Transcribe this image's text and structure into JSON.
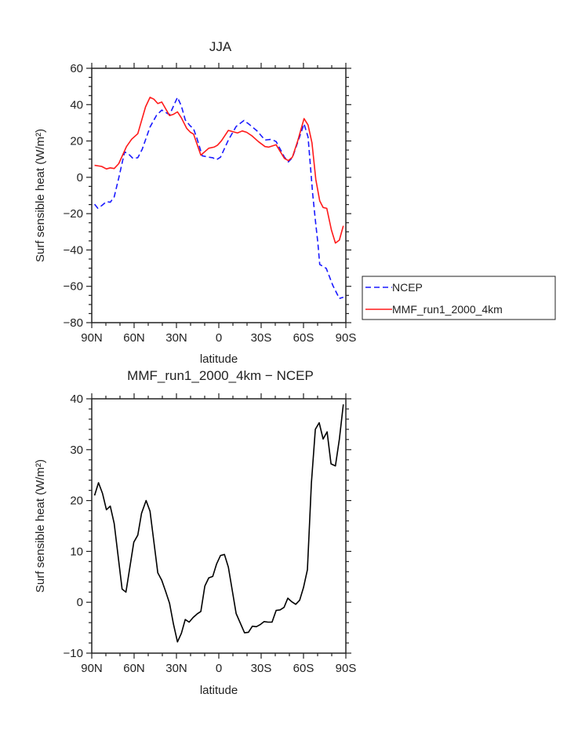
{
  "chart_data": [
    {
      "type": "line",
      "title": "JJA",
      "xlabel": "latitude",
      "ylabel": "Surf sensible heat (W/m²)",
      "xlim": [
        90,
        -90
      ],
      "ylim": [
        -80,
        60
      ],
      "x_ticks": [
        90,
        60,
        30,
        0,
        -30,
        -60,
        -90
      ],
      "x_tick_labels": [
        "90N",
        "60N",
        "30N",
        "0",
        "30S",
        "60S",
        "90S"
      ],
      "y_ticks": [
        60,
        40,
        20,
        0,
        -20,
        -40,
        -60,
        -80
      ],
      "y_tick_labels": [
        "60",
        "40",
        "20",
        "0",
        "−20",
        "−40",
        "−60",
        "−80"
      ],
      "x_minor_step": 10,
      "y_minor_step": 5,
      "legend": {
        "placement": "right",
        "entries": [
          "NCEP",
          "MMF_run1_2000_4km"
        ]
      },
      "series": [
        {
          "name": "NCEP",
          "color": "#1a1aff",
          "dash": "dashed",
          "x": [
            88,
            85.7,
            83,
            79.6,
            76.9,
            74.1,
            70.9,
            66.7,
            63.5,
            60.8,
            57.4,
            54.3,
            48.7,
            44.1,
            40.4,
            34.9,
            29.3,
            26.5,
            23.8,
            20.4,
            17.9,
            15.4,
            11.7,
            7.1,
            4.3,
            1.6,
            -1.2,
            -6.8,
            -12.3,
            -17.9,
            -21.6,
            -27.1,
            -32.7,
            -37.3,
            -40.6,
            -46.5,
            -49.3,
            -52.1,
            -55.8,
            -60.4,
            -63.2,
            -65,
            -66.5,
            -68.4,
            -70.2,
            -71.5,
            -76.1,
            -80.8,
            -85.4,
            -88.2
          ],
          "y": [
            -14.8,
            -17,
            -15.6,
            -13.4,
            -13.7,
            -10.8,
            -0.4,
            14,
            12.5,
            10.4,
            10.8,
            15.4,
            27.7,
            34.1,
            37,
            34.4,
            44,
            39.2,
            31.6,
            28.4,
            26.7,
            21.2,
            11.8,
            11.1,
            10.8,
            9.7,
            11.1,
            20.5,
            28,
            31.3,
            29.1,
            25.5,
            20.5,
            20.9,
            19.7,
            11.1,
            8.5,
            10.8,
            19,
            29.4,
            22.2,
            5.3,
            -9.1,
            -23.5,
            -36.5,
            -48,
            -50.1,
            -59.5,
            -66.7,
            -66
          ]
        },
        {
          "name": "MMF_run1_2000_4km",
          "color": "#ff1a1a",
          "dash": "solid",
          "x": [
            88,
            83,
            79.6,
            76.9,
            74.1,
            70.9,
            65.4,
            61.7,
            57.4,
            51.9,
            48.7,
            46,
            43.2,
            40.4,
            34.9,
            32.1,
            29.3,
            26.5,
            22.8,
            20.1,
            17.9,
            12.7,
            7.1,
            3.4,
            1,
            -1.8,
            -6.8,
            -9.5,
            -13.2,
            -16.6,
            -19.7,
            -23.4,
            -28,
            -32.7,
            -35.4,
            -40.6,
            -46.5,
            -49.3,
            -52.1,
            -55.8,
            -60.4,
            -63.2,
            -66,
            -68.7,
            -71.5,
            -73.9,
            -76.5,
            -79.8,
            -82.6,
            -85.4,
            -88.2
          ],
          "y": [
            6.6,
            6,
            4.6,
            5.2,
            4.8,
            7.5,
            16.9,
            21,
            24,
            38.8,
            44,
            43,
            40.6,
            41.4,
            34,
            34.7,
            36,
            32.7,
            27,
            24.8,
            23.8,
            12.2,
            16,
            16.6,
            17.6,
            20,
            25.8,
            25.2,
            24.4,
            25.5,
            24.8,
            22.9,
            19.7,
            16.9,
            16.6,
            17.9,
            10.4,
            9.2,
            11.1,
            19.7,
            32.3,
            28.8,
            19,
            -1.2,
            -13,
            -16.6,
            -17.1,
            -29,
            -36.2,
            -34.6,
            -26.7
          ]
        }
      ]
    },
    {
      "type": "line",
      "title": "MMF_run1_2000_4km − NCEP",
      "xlabel": "latitude",
      "ylabel": "Surf sensible heat (W/m²)",
      "xlim": [
        90,
        -90
      ],
      "ylim": [
        -10,
        40
      ],
      "x_ticks": [
        90,
        60,
        30,
        0,
        -30,
        -60,
        -90
      ],
      "x_tick_labels": [
        "90N",
        "60N",
        "30N",
        "0",
        "30S",
        "60S",
        "90S"
      ],
      "y_ticks": [
        40,
        30,
        20,
        10,
        0,
        -10
      ],
      "y_tick_labels": [
        "40",
        "30",
        "20",
        "10",
        "0",
        "−10"
      ],
      "x_minor_step": 10,
      "y_minor_step": 2,
      "series": [
        {
          "name": "difference",
          "color": "#000000",
          "dash": "solid",
          "x": [
            88,
            85.2,
            82.4,
            79.6,
            76.9,
            74.1,
            68.5,
            65.8,
            60.2,
            57.4,
            54.7,
            51.5,
            48.7,
            43.2,
            40.4,
            37.6,
            34.9,
            32.1,
            29.3,
            26.5,
            23.8,
            21,
            18.2,
            15.4,
            12.7,
            9.9,
            7.1,
            4.3,
            1.6,
            -1.2,
            -4,
            -6.8,
            -12.3,
            -18.2,
            -21,
            -23.8,
            -26.6,
            -29.3,
            -32.1,
            -34.9,
            -37.7,
            -40.6,
            -43.4,
            -46.2,
            -48.9,
            -51.7,
            -54.5,
            -57.3,
            -60,
            -62.8,
            -65.6,
            -68.4,
            -71.1,
            -73.9,
            -76.7,
            -79.5,
            -82.6,
            -85.4,
            -88.2
          ],
          "y": [
            21,
            23.5,
            21.4,
            18.2,
            18.9,
            15.5,
            2.6,
            2,
            11.8,
            13.2,
            17.5,
            20,
            17.9,
            5.8,
            4.3,
            2.1,
            -0.2,
            -4.3,
            -7.8,
            -6.1,
            -3.4,
            -3.9,
            -3,
            -2.3,
            -1.8,
            3.2,
            4.8,
            5.1,
            7.5,
            9.2,
            9.4,
            6.9,
            -2.2,
            -6,
            -5.9,
            -4.7,
            -4.8,
            -4.4,
            -3.8,
            -3.9,
            -3.9,
            -1.6,
            -1.5,
            -1,
            0.8,
            0.1,
            -0.4,
            0.4,
            2.9,
            6.4,
            23.5,
            34,
            35.3,
            32.1,
            33.5,
            27.2,
            26.8,
            32,
            38.9
          ]
        }
      ]
    }
  ]
}
